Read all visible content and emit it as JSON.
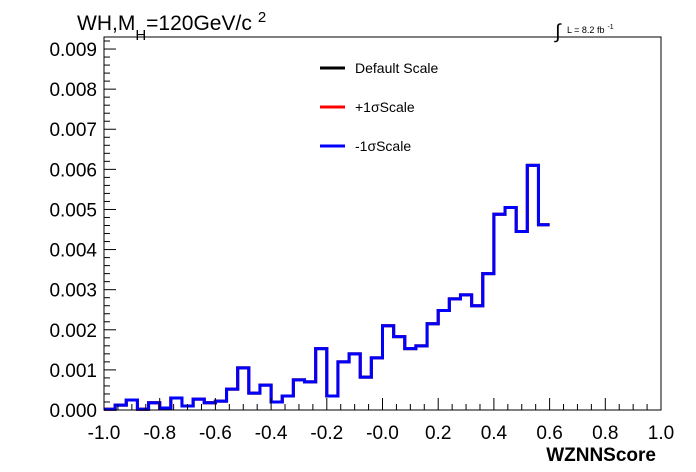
{
  "chart_data": {
    "type": "line",
    "title_parts": {
      "main": "WH,M",
      "sub": "H",
      "rest": "=120GeV/c",
      "sup": "2"
    },
    "lumi": {
      "integral": "∫",
      "text": "L = 8.2 fb",
      "sup": "-1"
    },
    "xlabel": "WZNNScore",
    "ylabel": "",
    "xlim": [
      -1.0,
      1.0
    ],
    "ylim": [
      0,
      0.0093
    ],
    "x_ticks": [
      "-1.0",
      "-0.8",
      "-0.6",
      "-0.4",
      "-0.2",
      "-0.0",
      "0.2",
      "0.4",
      "0.6",
      "0.8",
      "1.0"
    ],
    "y_ticks": [
      "0.000",
      "0.001",
      "0.002",
      "0.003",
      "0.004",
      "0.005",
      "0.006",
      "0.007",
      "0.008",
      "0.009"
    ],
    "bin_edges_start": -1.0,
    "bin_width": 0.04,
    "series": [
      {
        "name": "Default Scale",
        "color": "#000000",
        "values": [
          2e-05,
          0.00012,
          0.00025,
          2e-05,
          0.00018,
          5e-05,
          0.0003,
          0.0001,
          0.00027,
          0.00018,
          0.00022,
          0.00052,
          0.00105,
          0.00042,
          0.00062,
          0.0002,
          0.00035,
          0.00075,
          0.0007,
          0.00153,
          0.00035,
          0.0012,
          0.0014,
          0.00082,
          0.0013,
          0.0021,
          0.00183,
          0.00153,
          0.0016,
          0.00215,
          0.00248,
          0.00277,
          0.00287,
          0.0026,
          0.0034,
          0.00488,
          0.00505,
          0.00445,
          0.0061,
          0.00462
        ]
      },
      {
        "name": "+1σScale",
        "color": "#ff0000",
        "values": [
          2e-05,
          0.00012,
          0.00025,
          2e-05,
          0.00018,
          5e-05,
          0.0003,
          0.0001,
          0.00027,
          0.00018,
          0.00022,
          0.00052,
          0.00105,
          0.00042,
          0.00062,
          0.0002,
          0.00035,
          0.00075,
          0.0007,
          0.00153,
          0.00035,
          0.0012,
          0.0014,
          0.00082,
          0.0013,
          0.0021,
          0.00183,
          0.00153,
          0.0016,
          0.00215,
          0.00248,
          0.00277,
          0.00287,
          0.0026,
          0.0034,
          0.00488,
          0.00505,
          0.00445,
          0.0061,
          0.00462
        ]
      },
      {
        "name": "-1σScale",
        "color": "#0000ff",
        "values": [
          2e-05,
          0.00012,
          0.00025,
          2e-05,
          0.00018,
          5e-05,
          0.0003,
          0.0001,
          0.00027,
          0.00018,
          0.00022,
          0.00052,
          0.00105,
          0.00042,
          0.00062,
          0.0002,
          0.00035,
          0.00075,
          0.0007,
          0.00153,
          0.00035,
          0.0012,
          0.0014,
          0.00082,
          0.0013,
          0.0021,
          0.00183,
          0.00153,
          0.0016,
          0.00215,
          0.00248,
          0.00277,
          0.00287,
          0.0026,
          0.0034,
          0.00488,
          0.00505,
          0.00445,
          0.0061,
          0.00462
        ]
      }
    ],
    "legend_placement": "top-center",
    "grid": false
  }
}
